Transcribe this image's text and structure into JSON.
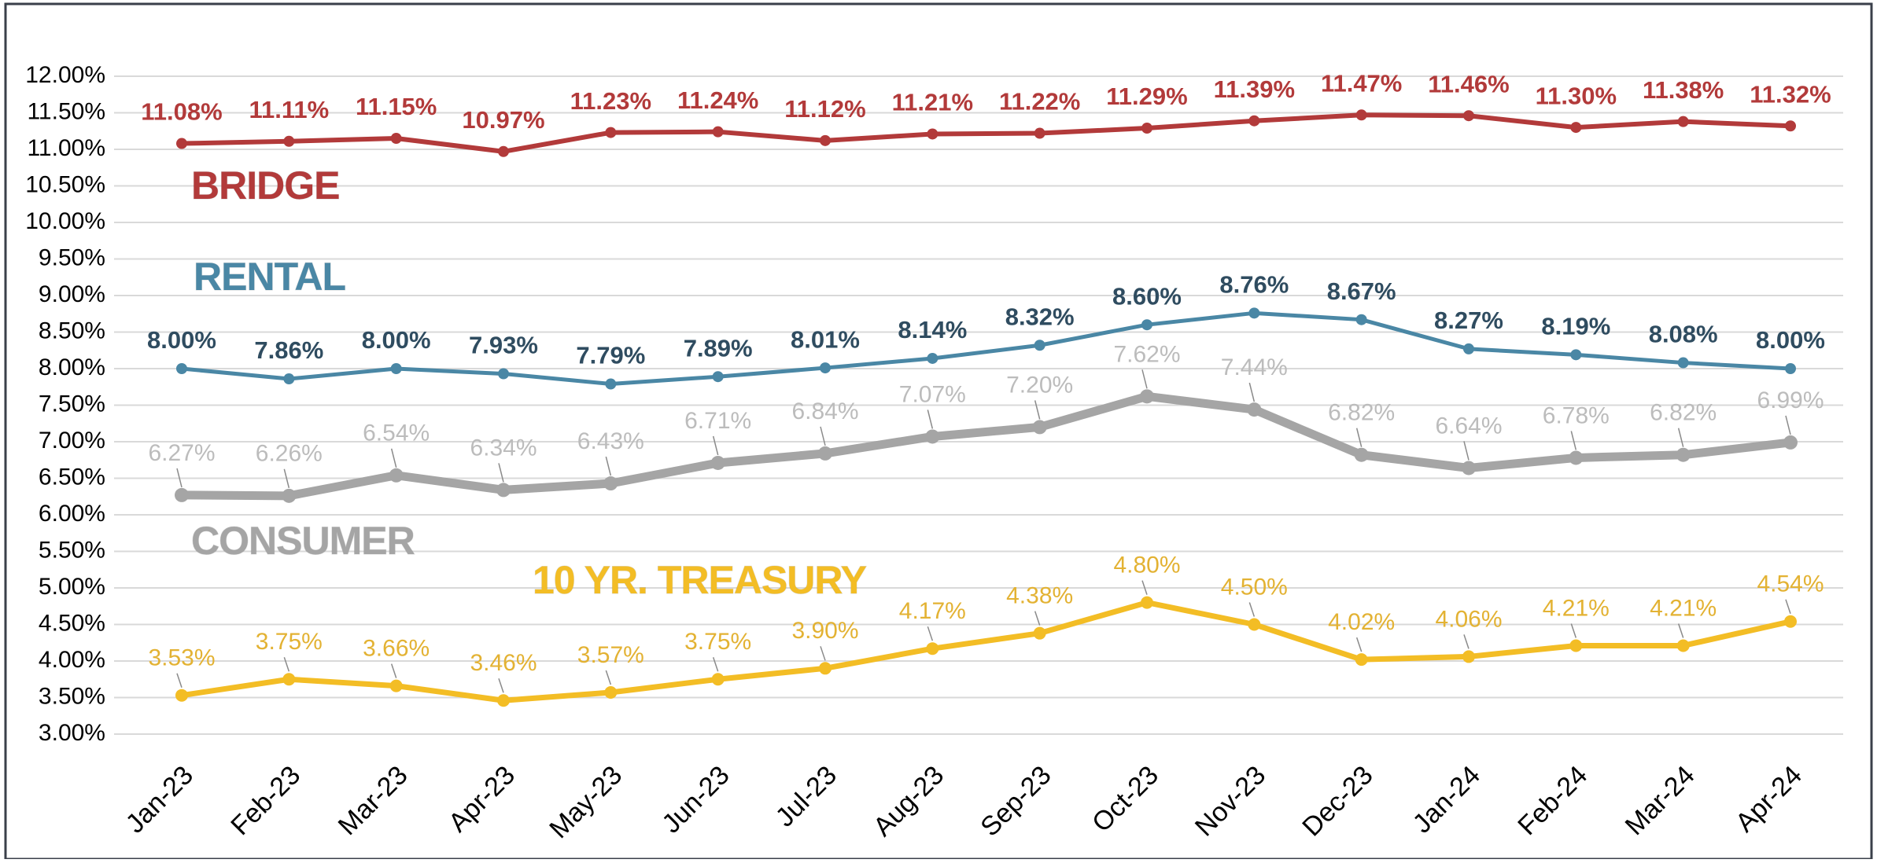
{
  "chart_data": {
    "type": "line",
    "categories": [
      "Jan-23",
      "Feb-23",
      "Mar-23",
      "Apr-23",
      "May-23",
      "Jun-23",
      "Jul-23",
      "Aug-23",
      "Sep-23",
      "Oct-23",
      "Nov-23",
      "Dec-23",
      "Jan-24",
      "Feb-24",
      "Mar-24",
      "Apr-24"
    ],
    "ylim": [
      3,
      12
    ],
    "yticks": [
      {
        "value": 3,
        "label": "3.00%"
      },
      {
        "value": 3.5,
        "label": "3.50%"
      },
      {
        "value": 4,
        "label": "4.00%"
      },
      {
        "value": 4.5,
        "label": "4.50%"
      },
      {
        "value": 5,
        "label": "5.00%"
      },
      {
        "value": 5.5,
        "label": "5.50%"
      },
      {
        "value": 6,
        "label": "6.00%"
      },
      {
        "value": 6.5,
        "label": "6.50%"
      },
      {
        "value": 7,
        "label": "7.00%"
      },
      {
        "value": 7.5,
        "label": "7.50%"
      },
      {
        "value": 8,
        "label": "8.00%"
      },
      {
        "value": 8.5,
        "label": "8.50%"
      },
      {
        "value": 9,
        "label": "9.00%"
      },
      {
        "value": 9.5,
        "label": "9.50%"
      },
      {
        "value": 10,
        "label": "10.00%"
      },
      {
        "value": 10.5,
        "label": "10.50%"
      },
      {
        "value": 11,
        "label": "11.00%"
      },
      {
        "value": 11.5,
        "label": "11.50%"
      },
      {
        "value": 12,
        "label": "12.00%"
      }
    ],
    "grid": true,
    "series": [
      {
        "name": "BRIDGE",
        "color": "#b23a3a",
        "label_color": "#b23a3a",
        "values": [
          11.08,
          11.11,
          11.15,
          10.97,
          11.23,
          11.24,
          11.12,
          11.21,
          11.22,
          11.29,
          11.39,
          11.47,
          11.46,
          11.3,
          11.38,
          11.32
        ],
        "value_labels": [
          "11.08%",
          "11.11%",
          "11.15%",
          "10.97%",
          "11.23%",
          "11.24%",
          "11.12%",
          "11.21%",
          "11.22%",
          "11.29%",
          "11.39%",
          "11.47%",
          "11.46%",
          "11.30%",
          "11.38%",
          "11.32%"
        ]
      },
      {
        "name": "RENTAL",
        "color": "#4a87a5",
        "label_color": "#2f4c60",
        "values": [
          8.0,
          7.86,
          8.0,
          7.93,
          7.79,
          7.89,
          8.01,
          8.14,
          8.32,
          8.6,
          8.76,
          8.67,
          8.27,
          8.19,
          8.08,
          8.0
        ],
        "value_labels": [
          "8.00%",
          "7.86%",
          "8.00%",
          "7.93%",
          "7.79%",
          "7.89%",
          "8.01%",
          "8.14%",
          "8.32%",
          "8.60%",
          "8.76%",
          "8.67%",
          "8.27%",
          "8.19%",
          "8.08%",
          "8.00%"
        ]
      },
      {
        "name": "CONSUMER",
        "color": "#a5a5a5",
        "label_color": "#bcbcbc",
        "values": [
          6.27,
          6.26,
          6.54,
          6.34,
          6.43,
          6.71,
          6.84,
          7.07,
          7.2,
          7.62,
          7.44,
          6.82,
          6.64,
          6.78,
          6.82,
          6.99
        ],
        "value_labels": [
          "6.27%",
          "6.26%",
          "6.54%",
          "6.34%",
          "6.43%",
          "6.71%",
          "6.84%",
          "7.07%",
          "7.20%",
          "7.62%",
          "7.44%",
          "6.82%",
          "6.64%",
          "6.78%",
          "6.82%",
          "6.99%"
        ]
      },
      {
        "name": "10 YR. TREASURY",
        "color": "#f3bd25",
        "label_color": "#e3b233",
        "values": [
          3.53,
          3.75,
          3.66,
          3.46,
          3.57,
          3.75,
          3.9,
          4.17,
          4.38,
          4.8,
          4.5,
          4.02,
          4.06,
          4.21,
          4.21,
          4.54
        ],
        "value_labels": [
          "3.53%",
          "3.75%",
          "3.66%",
          "3.46%",
          "3.57%",
          "3.75%",
          "3.90%",
          "4.17%",
          "4.38%",
          "4.80%",
          "4.50%",
          "4.02%",
          "4.06%",
          "4.21%",
          "4.21%",
          "4.54%"
        ]
      }
    ]
  }
}
